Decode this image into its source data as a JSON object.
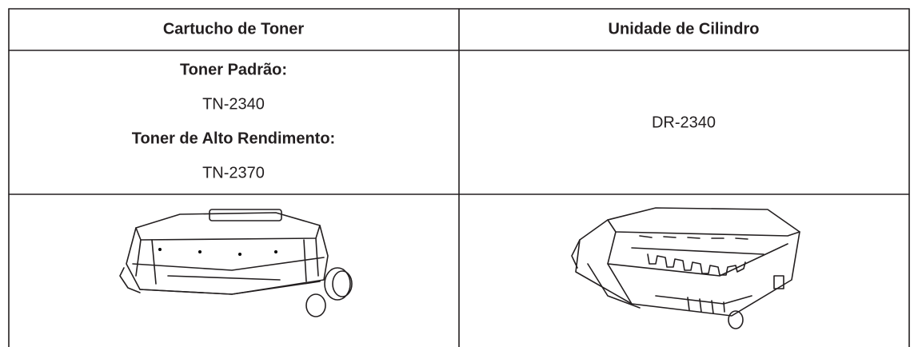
{
  "table": {
    "header": [
      "Cartucho de Toner",
      "Unidade de Cilindro"
    ],
    "toner": {
      "standard_label": "Toner Padrão:",
      "standard_model": "TN-2340",
      "high_yield_label": "Toner de Alto Rendimento:",
      "high_yield_model": "TN-2370"
    },
    "drum_model": "DR-2340"
  }
}
